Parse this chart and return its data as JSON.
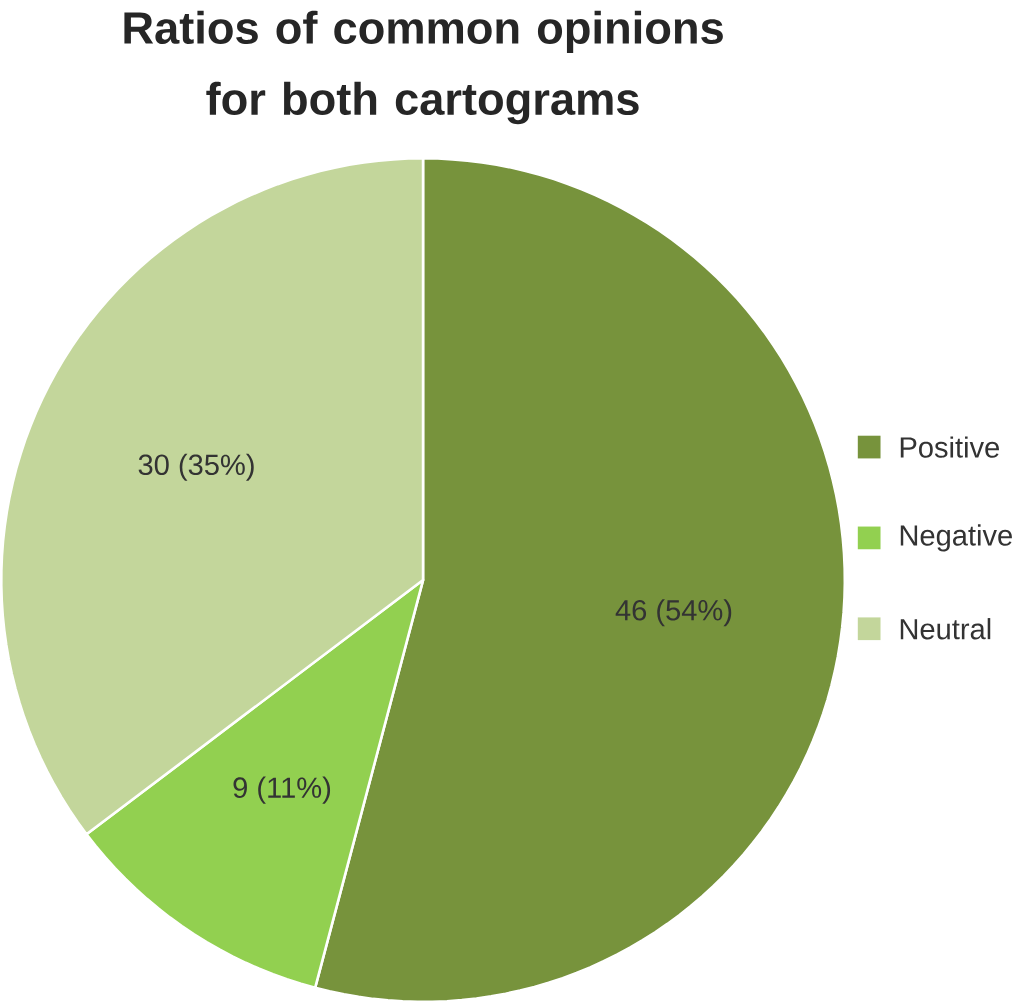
{
  "chart_data": {
    "type": "pie",
    "title": "Ratios of common opinions for both cartograms",
    "categories": [
      "Positive",
      "Negative",
      "Neutral"
    ],
    "values": [
      46,
      9,
      30
    ],
    "value_labels": [
      "46 (54%)",
      "9 (11%)",
      "30 (35%)"
    ],
    "colors": [
      "#77933c",
      "#92d050",
      "#c3d69b"
    ],
    "legend": "right"
  }
}
